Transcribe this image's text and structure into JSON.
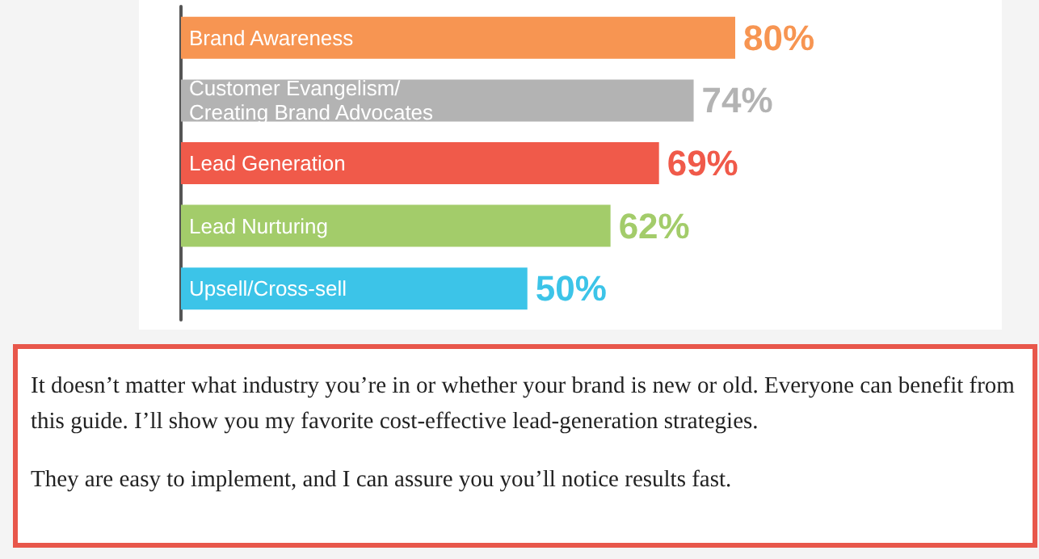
{
  "chart_data": {
    "type": "bar",
    "orientation": "horizontal",
    "data_labels": true,
    "categories": [
      "Brand Awareness",
      "Customer Evangelism/ Creating Brand Advocates",
      "Lead Generation",
      "Lead Nurturing",
      "Upsell/Cross-sell"
    ],
    "values": [
      80,
      74,
      69,
      62,
      50
    ],
    "value_labels": [
      "80%",
      "74%",
      "69%",
      "62%",
      "50%"
    ],
    "colors": [
      "#f79552",
      "#b3b3b3",
      "#f05a4a",
      "#a3cc6a",
      "#3cc4e8"
    ],
    "annotations": [
      "It doesn’t matter what industry you’re in or whether your brand is new or old. Everyone can benefit from this guide. I’ll show you my favorite cost-effective lead-generation strategies.",
      "They are easy to implement, and I can assure you you’ll notice results fast."
    ]
  }
}
